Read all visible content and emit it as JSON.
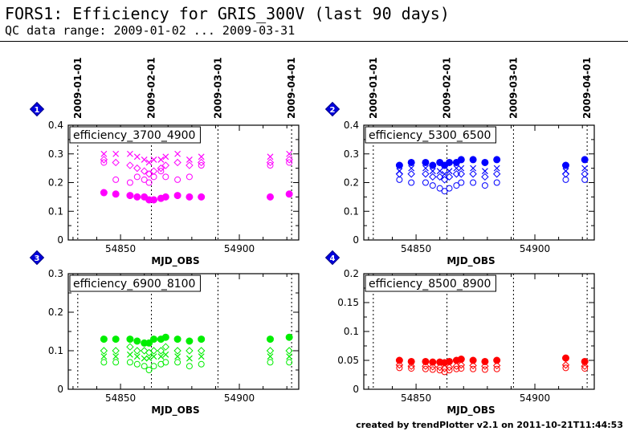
{
  "header": {
    "title": "FORS1: Efficiency for GRIS_300V (last 90 days)",
    "subtitle": "QC data range: 2009-01-02 ... 2009-03-31"
  },
  "footer": {
    "credit": "created by trendPlotter v2.1 on 2011-10-21T11:44:53"
  },
  "chart_data": [
    {
      "type": "scatter",
      "panel_number": "1",
      "title": "efficiency_3700_4900",
      "xlabel": "MJD_OBS",
      "ylabel": "",
      "xlim": [
        54828,
        54925
      ],
      "ylim": [
        0,
        0.4
      ],
      "x_ticks": [
        54850,
        54900
      ],
      "y_ticks": [
        0,
        0.1,
        0.2,
        0.3,
        0.4
      ],
      "y_tick_labels": [
        "0",
        "0.1",
        "0.2",
        "0.3",
        "0.4"
      ],
      "top_axis_dates": [
        "2009-01-01",
        "2009-02-01",
        "2009-03-01",
        "2009-04-01"
      ],
      "top_axis_mjd": [
        54832,
        54863,
        54891,
        54922
      ],
      "color": "#ff00ff",
      "x_positions": [
        54843,
        54848,
        54854,
        54857,
        54860,
        54862,
        54864,
        54867,
        54869,
        54874,
        54879,
        54884,
        54913,
        54921
      ],
      "series": [
        {
          "name": "filled",
          "marker": "filled-circle",
          "y": [
            0.165,
            0.16,
            0.155,
            0.15,
            0.15,
            0.14,
            0.14,
            0.145,
            0.15,
            0.155,
            0.15,
            0.15,
            0.15,
            0.16
          ]
        },
        {
          "name": "cross",
          "marker": "cross",
          "y": [
            0.3,
            0.3,
            0.3,
            0.29,
            0.28,
            0.27,
            0.28,
            0.28,
            0.29,
            0.3,
            0.28,
            0.29,
            0.29,
            0.3
          ]
        },
        {
          "name": "diamond",
          "marker": "diamond",
          "y": [
            0.28,
            0.27,
            0.26,
            0.25,
            0.24,
            0.23,
            0.24,
            0.25,
            0.26,
            0.27,
            0.26,
            0.27,
            0.27,
            0.28
          ]
        },
        {
          "name": "open",
          "marker": "open-circle",
          "y": [
            0.27,
            0.21,
            0.2,
            0.22,
            0.21,
            0.2,
            0.22,
            0.24,
            0.22,
            0.21,
            0.22,
            0.26,
            0.26,
            0.27
          ]
        }
      ]
    },
    {
      "type": "scatter",
      "panel_number": "2",
      "title": "efficiency_5300_6500",
      "xlabel": "MJD_OBS",
      "ylabel": "",
      "xlim": [
        54828,
        54925
      ],
      "ylim": [
        0,
        0.4
      ],
      "x_ticks": [
        54850,
        54900
      ],
      "y_ticks": [
        0,
        0.1,
        0.2,
        0.3,
        0.4
      ],
      "y_tick_labels": [
        "0",
        "0.1",
        "0.2",
        "0.3",
        "0.4"
      ],
      "top_axis_dates": [
        "2009-01-01",
        "2009-02-01",
        "2009-03-01",
        "2009-04-01"
      ],
      "top_axis_mjd": [
        54832,
        54863,
        54891,
        54922
      ],
      "color": "#0000ff",
      "x_positions": [
        54843,
        54848,
        54854,
        54857,
        54860,
        54862,
        54864,
        54867,
        54869,
        54874,
        54879,
        54884,
        54913,
        54921
      ],
      "series": [
        {
          "name": "filled",
          "marker": "filled-circle",
          "y": [
            0.26,
            0.27,
            0.27,
            0.26,
            0.27,
            0.26,
            0.27,
            0.27,
            0.28,
            0.28,
            0.27,
            0.28,
            0.26,
            0.28
          ]
        },
        {
          "name": "cross",
          "marker": "cross",
          "y": [
            0.24,
            0.25,
            0.25,
            0.24,
            0.24,
            0.23,
            0.24,
            0.25,
            0.25,
            0.25,
            0.24,
            0.25,
            0.24,
            0.25
          ]
        },
        {
          "name": "diamond",
          "marker": "diamond",
          "y": [
            0.23,
            0.23,
            0.23,
            0.22,
            0.22,
            0.21,
            0.22,
            0.23,
            0.23,
            0.23,
            0.22,
            0.23,
            0.23,
            0.23
          ]
        },
        {
          "name": "open",
          "marker": "open-circle",
          "y": [
            0.21,
            0.2,
            0.2,
            0.19,
            0.18,
            0.17,
            0.18,
            0.19,
            0.2,
            0.2,
            0.19,
            0.2,
            0.21,
            0.21
          ]
        }
      ]
    },
    {
      "type": "scatter",
      "panel_number": "3",
      "title": "efficiency_6900_8100",
      "xlabel": "MJD_OBS",
      "ylabel": "",
      "xlim": [
        54828,
        54925
      ],
      "ylim": [
        0,
        0.3
      ],
      "x_ticks": [
        54850,
        54900
      ],
      "y_ticks": [
        0,
        0.1,
        0.2,
        0.3
      ],
      "y_tick_labels": [
        "0",
        "0.1",
        "0.2",
        "0.3"
      ],
      "color": "#00ee00",
      "x_positions": [
        54843,
        54848,
        54854,
        54857,
        54860,
        54862,
        54864,
        54867,
        54869,
        54874,
        54879,
        54884,
        54913,
        54921
      ],
      "series": [
        {
          "name": "filled",
          "marker": "filled-circle",
          "y": [
            0.13,
            0.13,
            0.13,
            0.125,
            0.12,
            0.12,
            0.13,
            0.13,
            0.135,
            0.13,
            0.125,
            0.13,
            0.13,
            0.135
          ]
        },
        {
          "name": "diamond",
          "marker": "diamond",
          "y": [
            0.1,
            0.1,
            0.11,
            0.1,
            0.1,
            0.095,
            0.1,
            0.1,
            0.11,
            0.1,
            0.1,
            0.1,
            0.1,
            0.1
          ]
        },
        {
          "name": "cross",
          "marker": "cross",
          "y": [
            0.085,
            0.085,
            0.09,
            0.085,
            0.08,
            0.08,
            0.085,
            0.085,
            0.09,
            0.085,
            0.08,
            0.085,
            0.085,
            0.085
          ]
        },
        {
          "name": "open",
          "marker": "open-circle",
          "y": [
            0.07,
            0.07,
            0.07,
            0.065,
            0.06,
            0.05,
            0.06,
            0.065,
            0.07,
            0.07,
            0.06,
            0.065,
            0.07,
            0.07
          ]
        }
      ]
    },
    {
      "type": "scatter",
      "panel_number": "4",
      "title": "efficiency_8500_8900",
      "xlabel": "MJD_OBS",
      "ylabel": "",
      "xlim": [
        54828,
        54925
      ],
      "ylim": [
        0,
        0.2
      ],
      "x_ticks": [
        54850,
        54900
      ],
      "y_ticks": [
        0,
        0.05,
        0.1,
        0.15,
        0.2
      ],
      "y_tick_labels": [
        "0",
        "0.05",
        "0.1",
        "0.15",
        "0.2"
      ],
      "color": "#ff0000",
      "x_positions": [
        54843,
        54848,
        54854,
        54857,
        54860,
        54862,
        54864,
        54867,
        54869,
        54874,
        54879,
        54884,
        54913,
        54921
      ],
      "series": [
        {
          "name": "filled",
          "marker": "filled-circle",
          "y": [
            0.05,
            0.048,
            0.048,
            0.047,
            0.047,
            0.046,
            0.048,
            0.05,
            0.052,
            0.05,
            0.048,
            0.05,
            0.054,
            0.048
          ]
        },
        {
          "name": "diamond",
          "marker": "diamond",
          "y": [
            0.042,
            0.04,
            0.04,
            0.039,
            0.038,
            0.036,
            0.038,
            0.04,
            0.042,
            0.041,
            0.04,
            0.041,
            0.042,
            0.04
          ]
        },
        {
          "name": "open",
          "marker": "open-circle",
          "y": [
            0.037,
            0.036,
            0.035,
            0.034,
            0.033,
            0.03,
            0.033,
            0.035,
            0.036,
            0.035,
            0.034,
            0.035,
            0.037,
            0.036
          ]
        }
      ]
    }
  ]
}
